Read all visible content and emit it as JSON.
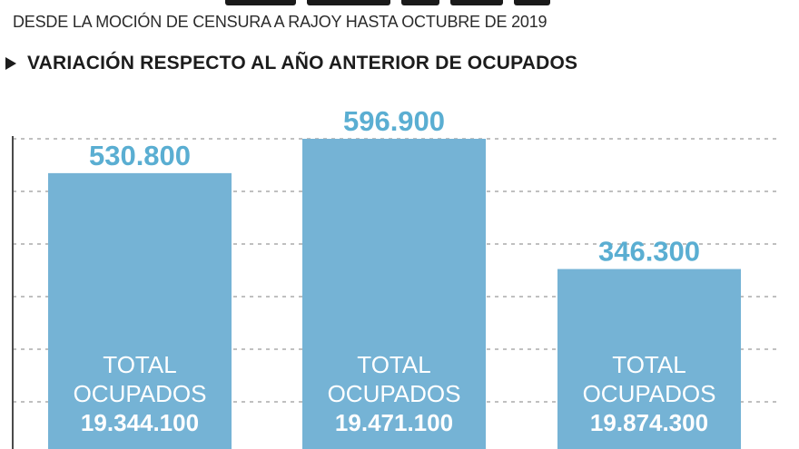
{
  "subtitle": "DESDE LA MOCIÓN DE CENSURA A RAJOY HASTA OCTUBRE DE 2019",
  "section_title": "VARIACIÓN RESPECTO AL AÑO ANTERIOR DE OCUPADOS",
  "colors": {
    "bar": "#75b3d5",
    "value_label": "#5aaed2",
    "grid": "#9a9a9a",
    "axis": "#4a4a4a"
  },
  "chart_data": {
    "type": "bar",
    "values": [
      530800,
      596900,
      346300
    ],
    "value_labels": [
      "530.800",
      "596.900",
      "346.300"
    ],
    "inner_labels": [
      {
        "line1": "TOTAL",
        "line2": "OCUPADOS",
        "total": "19.344.100"
      },
      {
        "line1": "TOTAL",
        "line2": "OCUPADOS",
        "total": "19.471.100"
      },
      {
        "line1": "TOTAL",
        "line2": "OCUPADOS",
        "total": "19.874.300"
      }
    ],
    "ylim": [
      0,
      600000
    ],
    "grid": true
  }
}
